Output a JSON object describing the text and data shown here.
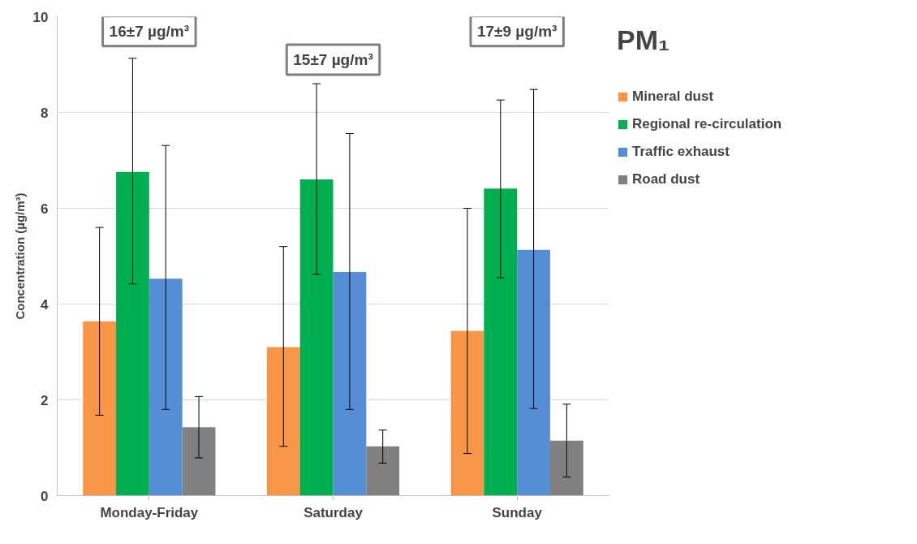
{
  "chart_data": {
    "type": "bar",
    "ylabel": "Concentration (µg/m³)",
    "legend_title": "PM₁",
    "categories": [
      "Monday-Friday",
      "Saturday",
      "Sunday"
    ],
    "series": [
      {
        "name": "Mineral dust",
        "color": "#f79646",
        "values": [
          3.64,
          3.1,
          3.44
        ],
        "errors": [
          [
            1.68,
            5.6
          ],
          [
            1.03,
            5.2
          ],
          [
            0.88,
            6.0
          ]
        ]
      },
      {
        "name": "Regional re-circulation",
        "color": "#00b050",
        "values": [
          6.76,
          6.6,
          6.41
        ],
        "errors": [
          [
            4.42,
            9.13
          ],
          [
            4.62,
            8.6
          ],
          [
            4.55,
            8.26
          ]
        ]
      },
      {
        "name": "Traffic exhaust",
        "color": "#558ed5",
        "values": [
          4.53,
          4.67,
          5.13
        ],
        "errors": [
          [
            1.8,
            7.31
          ],
          [
            1.8,
            7.56
          ],
          [
            1.82,
            8.48
          ]
        ]
      },
      {
        "name": "Road dust",
        "color": "#808080",
        "values": [
          1.43,
          1.03,
          1.15
        ],
        "errors": [
          [
            0.79,
            2.07
          ],
          [
            0.68,
            1.37
          ],
          [
            0.39,
            1.91
          ]
        ]
      }
    ],
    "annotations": [
      "16±7 µg/m³",
      "15±7 µg/m³",
      "17±9 µg/m³"
    ],
    "ylim": [
      0,
      10
    ],
    "yticks": [
      0,
      2,
      4,
      6,
      8,
      10
    ],
    "grid": "y",
    "legend": "right"
  }
}
